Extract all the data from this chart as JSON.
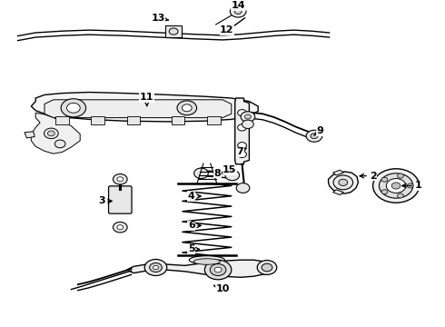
{
  "background_color": "#ffffff",
  "figsize": [
    4.9,
    3.6
  ],
  "dpi": 100,
  "label_positions": {
    "1": [
      0.94,
      0.568,
      0.895,
      0.568
    ],
    "2": [
      0.838,
      0.538,
      0.8,
      0.538
    ],
    "3": [
      0.228,
      0.615,
      0.26,
      0.615
    ],
    "4": [
      0.43,
      0.6,
      0.46,
      0.6
    ],
    "5": [
      0.43,
      0.762,
      0.45,
      0.762
    ],
    "6": [
      0.43,
      0.69,
      0.46,
      0.69
    ],
    "7": [
      0.54,
      0.465,
      0.555,
      0.452
    ],
    "8": [
      0.488,
      0.53,
      0.51,
      0.53
    ],
    "9": [
      0.72,
      0.4,
      0.705,
      0.415
    ],
    "10": [
      0.5,
      0.882,
      0.478,
      0.872
    ],
    "11": [
      0.33,
      0.298,
      0.33,
      0.335
    ],
    "12": [
      0.51,
      0.092,
      0.505,
      0.108
    ],
    "13": [
      0.355,
      0.055,
      0.38,
      0.062
    ],
    "14": [
      0.535,
      0.018,
      0.52,
      0.032
    ],
    "15": [
      0.516,
      0.52,
      0.53,
      0.505
    ]
  }
}
